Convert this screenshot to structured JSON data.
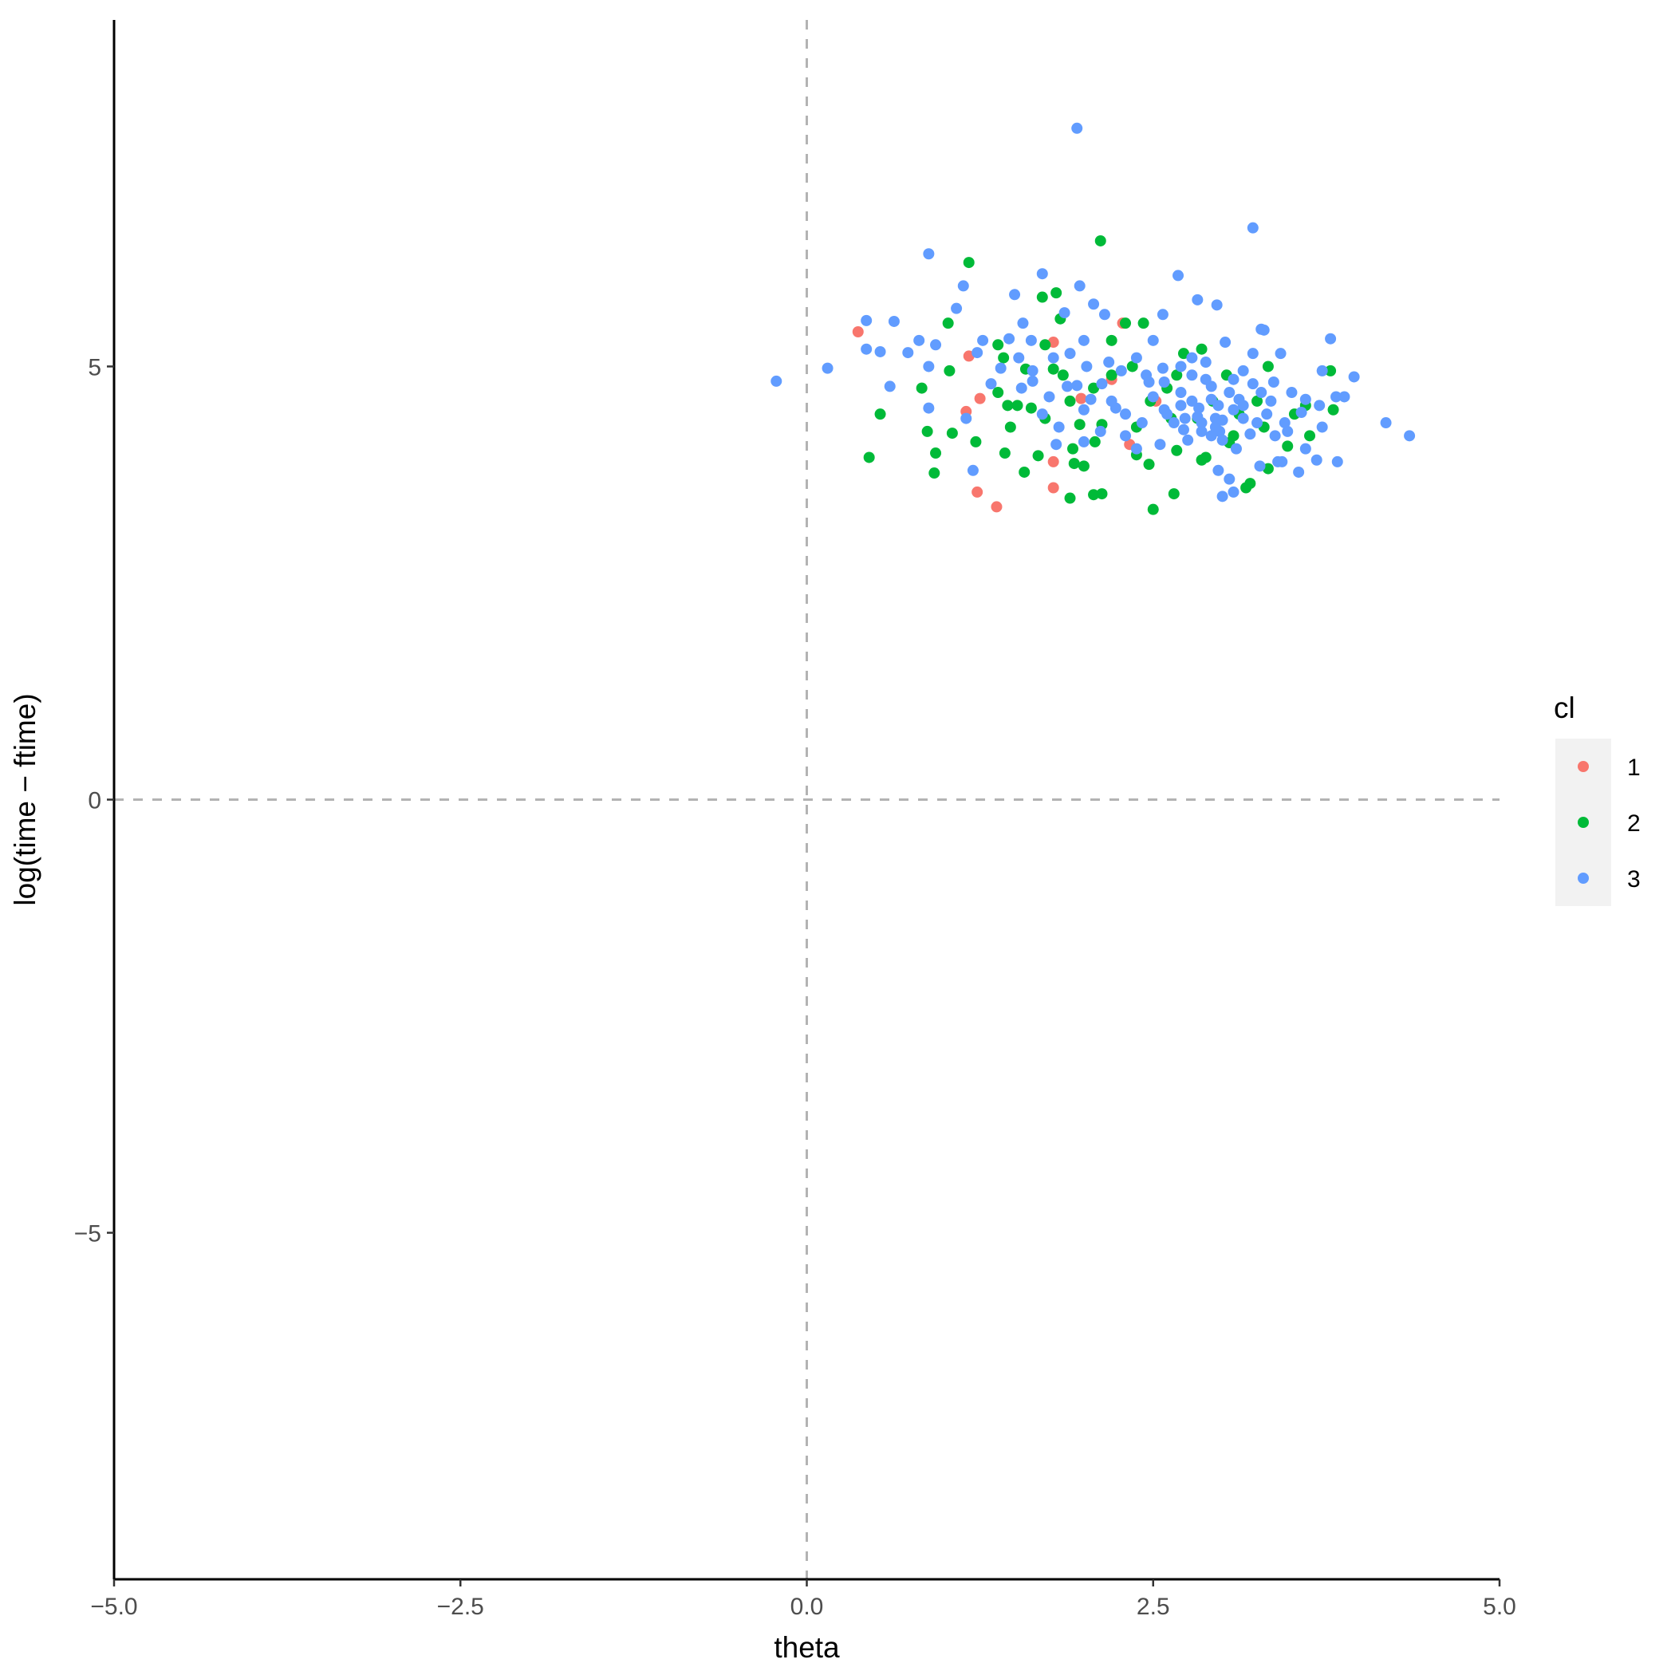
{
  "chart_data": {
    "type": "scatter",
    "title": "",
    "xlabel": "theta",
    "ylabel": "log(time − ftime)",
    "xlim": [
      -5.0,
      5.0
    ],
    "ylim": [
      -9,
      9
    ],
    "x_ticks": [
      -5.0,
      -2.5,
      0.0,
      2.5,
      5.0
    ],
    "x_tick_labels": [
      "−5.0",
      "−2.5",
      "0.0",
      "2.5",
      "5.0"
    ],
    "y_ticks": [
      -5,
      0,
      5
    ],
    "y_tick_labels": [
      "−5",
      "0",
      "5"
    ],
    "reference_lines": {
      "vertical_x": 0,
      "horizontal_y": 0,
      "style": "dashed",
      "color": "#b3b3b3"
    },
    "grid": false,
    "legend": {
      "title": "cl",
      "placement": "right",
      "entries": [
        {
          "label": "1",
          "color": "#F8766D"
        },
        {
          "label": "2",
          "color": "#00BA38"
        },
        {
          "label": "3",
          "color": "#619CFF"
        }
      ]
    },
    "series": [
      {
        "name": "1",
        "color": "#F8766D",
        "points": [
          [
            0.37,
            5.4
          ],
          [
            1.17,
            5.12
          ],
          [
            1.23,
            3.55
          ],
          [
            1.37,
            3.38
          ],
          [
            1.25,
            4.63
          ],
          [
            1.15,
            4.48
          ],
          [
            1.78,
            5.28
          ],
          [
            1.78,
            3.9
          ],
          [
            1.78,
            3.6
          ],
          [
            1.98,
            4.63
          ],
          [
            2.2,
            4.85
          ],
          [
            2.33,
            4.1
          ],
          [
            2.52,
            4.6
          ],
          [
            2.28,
            5.5
          ]
        ]
      },
      {
        "name": "2",
        "color": "#00BA38",
        "points": [
          [
            2.12,
            6.45
          ],
          [
            1.17,
            6.2
          ],
          [
            1.8,
            5.85
          ],
          [
            1.7,
            5.8
          ],
          [
            1.02,
            5.5
          ],
          [
            2.3,
            5.5
          ],
          [
            2.43,
            5.5
          ],
          [
            1.83,
            5.55
          ],
          [
            1.38,
            5.25
          ],
          [
            1.42,
            5.1
          ],
          [
            1.72,
            5.25
          ],
          [
            2.2,
            5.3
          ],
          [
            2.72,
            5.15
          ],
          [
            2.85,
            5.2
          ],
          [
            1.78,
            4.97
          ],
          [
            1.58,
            4.97
          ],
          [
            1.85,
            4.9
          ],
          [
            2.2,
            4.9
          ],
          [
            2.67,
            4.9
          ],
          [
            3.03,
            4.9
          ],
          [
            3.33,
            5.0
          ],
          [
            3.78,
            4.95
          ],
          [
            1.03,
            4.95
          ],
          [
            0.83,
            4.75
          ],
          [
            1.45,
            4.55
          ],
          [
            1.52,
            4.55
          ],
          [
            1.38,
            4.7
          ],
          [
            1.9,
            4.6
          ],
          [
            2.07,
            4.75
          ],
          [
            2.48,
            4.6
          ],
          [
            2.93,
            4.6
          ],
          [
            3.25,
            4.6
          ],
          [
            3.6,
            4.55
          ],
          [
            3.8,
            4.5
          ],
          [
            0.53,
            4.45
          ],
          [
            0.87,
            4.25
          ],
          [
            1.05,
            4.23
          ],
          [
            1.22,
            4.13
          ],
          [
            1.47,
            4.3
          ],
          [
            1.72,
            4.4
          ],
          [
            1.97,
            4.33
          ],
          [
            2.13,
            4.33
          ],
          [
            2.38,
            4.3
          ],
          [
            2.63,
            4.4
          ],
          [
            2.82,
            4.4
          ],
          [
            3.08,
            4.2
          ],
          [
            3.3,
            4.3
          ],
          [
            3.52,
            4.45
          ],
          [
            3.63,
            4.2
          ],
          [
            3.47,
            4.08
          ],
          [
            0.45,
            3.95
          ],
          [
            0.93,
            4.0
          ],
          [
            1.43,
            4.0
          ],
          [
            1.67,
            3.97
          ],
          [
            1.92,
            4.05
          ],
          [
            2.08,
            4.13
          ],
          [
            2.38,
            3.98
          ],
          [
            2.67,
            4.03
          ],
          [
            2.88,
            3.95
          ],
          [
            3.05,
            4.12
          ],
          [
            0.92,
            3.77
          ],
          [
            1.57,
            3.78
          ],
          [
            1.93,
            3.88
          ],
          [
            2.0,
            3.85
          ],
          [
            2.47,
            3.87
          ],
          [
            2.85,
            3.92
          ],
          [
            3.33,
            3.82
          ],
          [
            1.9,
            3.48
          ],
          [
            2.07,
            3.52
          ],
          [
            2.13,
            3.53
          ],
          [
            2.65,
            3.53
          ],
          [
            3.17,
            3.6
          ],
          [
            3.2,
            3.65
          ],
          [
            2.5,
            3.35
          ],
          [
            2.35,
            5.0
          ],
          [
            2.6,
            4.75
          ],
          [
            1.62,
            4.52
          ],
          [
            3.12,
            4.45
          ]
        ]
      },
      {
        "name": "3",
        "color": "#619CFF",
        "points": [
          [
            1.95,
            7.75
          ],
          [
            3.22,
            6.6
          ],
          [
            0.88,
            6.3
          ],
          [
            1.7,
            6.07
          ],
          [
            2.68,
            6.05
          ],
          [
            1.13,
            5.93
          ],
          [
            1.97,
            5.93
          ],
          [
            1.5,
            5.83
          ],
          [
            1.08,
            5.67
          ],
          [
            2.07,
            5.72
          ],
          [
            2.82,
            5.77
          ],
          [
            2.96,
            5.71
          ],
          [
            0.43,
            5.53
          ],
          [
            0.63,
            5.52
          ],
          [
            1.56,
            5.5
          ],
          [
            2.57,
            5.6
          ],
          [
            3.28,
            5.43
          ],
          [
            3.3,
            5.42
          ],
          [
            1.86,
            5.62
          ],
          [
            2.15,
            5.6
          ],
          [
            0.81,
            5.3
          ],
          [
            0.93,
            5.25
          ],
          [
            1.27,
            5.3
          ],
          [
            1.46,
            5.32
          ],
          [
            1.62,
            5.3
          ],
          [
            2.0,
            5.3
          ],
          [
            2.5,
            5.3
          ],
          [
            3.02,
            5.28
          ],
          [
            3.78,
            5.32
          ],
          [
            0.43,
            5.2
          ],
          [
            0.53,
            5.17
          ],
          [
            0.73,
            5.16
          ],
          [
            1.23,
            5.16
          ],
          [
            1.53,
            5.1
          ],
          [
            1.78,
            5.1
          ],
          [
            2.38,
            5.1
          ],
          [
            2.78,
            5.1
          ],
          [
            3.22,
            5.15
          ],
          [
            3.42,
            5.15
          ],
          [
            0.88,
            5.0
          ],
          [
            0.15,
            4.98
          ],
          [
            1.4,
            4.98
          ],
          [
            1.63,
            4.95
          ],
          [
            2.27,
            4.95
          ],
          [
            2.57,
            4.98
          ],
          [
            3.15,
            4.95
          ],
          [
            3.72,
            4.95
          ],
          [
            3.95,
            4.88
          ],
          [
            -0.22,
            4.83
          ],
          [
            0.6,
            4.77
          ],
          [
            1.33,
            4.8
          ],
          [
            1.63,
            4.83
          ],
          [
            1.88,
            4.77
          ],
          [
            2.13,
            4.8
          ],
          [
            2.47,
            4.82
          ],
          [
            2.92,
            4.77
          ],
          [
            3.37,
            4.82
          ],
          [
            3.82,
            4.65
          ],
          [
            3.88,
            4.65
          ],
          [
            0.88,
            4.52
          ],
          [
            1.15,
            4.4
          ],
          [
            1.7,
            4.45
          ],
          [
            2.0,
            4.5
          ],
          [
            2.23,
            4.52
          ],
          [
            2.58,
            4.5
          ],
          [
            2.83,
            4.52
          ],
          [
            3.08,
            4.5
          ],
          [
            3.32,
            4.45
          ],
          [
            3.57,
            4.47
          ],
          [
            3.7,
            4.55
          ],
          [
            4.18,
            4.35
          ],
          [
            4.35,
            4.2
          ],
          [
            1.8,
            4.1
          ],
          [
            2.0,
            4.13
          ],
          [
            2.3,
            4.2
          ],
          [
            2.72,
            4.27
          ],
          [
            2.98,
            4.25
          ],
          [
            3.2,
            4.22
          ],
          [
            3.47,
            4.25
          ],
          [
            3.6,
            4.05
          ],
          [
            3.83,
            3.9
          ],
          [
            3.68,
            3.92
          ],
          [
            3.4,
            3.9
          ],
          [
            1.2,
            3.8
          ],
          [
            2.97,
            3.8
          ],
          [
            3.55,
            3.78
          ],
          [
            3.05,
            3.7
          ],
          [
            3.08,
            3.55
          ],
          [
            3.0,
            3.5
          ],
          [
            3.27,
            3.85
          ],
          [
            3.43,
            3.9
          ],
          [
            2.92,
            4.2
          ],
          [
            2.78,
            4.6
          ],
          [
            2.95,
            4.4
          ],
          [
            3.1,
            4.05
          ],
          [
            3.25,
            4.35
          ],
          [
            2.65,
            4.35
          ],
          [
            2.75,
            4.15
          ],
          [
            2.85,
            4.35
          ],
          [
            2.97,
            4.55
          ],
          [
            3.05,
            4.7
          ],
          [
            3.15,
            4.4
          ],
          [
            2.7,
            4.7
          ],
          [
            2.88,
            4.85
          ],
          [
            2.5,
            4.65
          ],
          [
            2.6,
            4.45
          ],
          [
            3.35,
            4.6
          ],
          [
            3.5,
            4.7
          ],
          [
            3.12,
            4.62
          ],
          [
            2.82,
            4.42
          ],
          [
            2.95,
            4.3
          ],
          [
            3.0,
            4.15
          ],
          [
            2.73,
            4.4
          ],
          [
            2.42,
            4.35
          ],
          [
            2.3,
            4.45
          ],
          [
            2.2,
            4.6
          ],
          [
            2.05,
            4.62
          ],
          [
            1.95,
            4.78
          ],
          [
            1.75,
            4.65
          ],
          [
            1.55,
            4.75
          ],
          [
            1.82,
            4.3
          ],
          [
            2.12,
            4.25
          ],
          [
            2.38,
            4.05
          ],
          [
            2.55,
            4.1
          ],
          [
            3.38,
            4.2
          ],
          [
            3.72,
            4.3
          ],
          [
            3.6,
            4.62
          ],
          [
            2.45,
            4.9
          ],
          [
            2.18,
            5.05
          ],
          [
            2.02,
            5.0
          ],
          [
            1.9,
            5.15
          ],
          [
            2.7,
            5.0
          ],
          [
            2.88,
            5.05
          ],
          [
            3.08,
            4.85
          ],
          [
            3.22,
            4.8
          ],
          [
            2.78,
            4.9
          ],
          [
            2.92,
            4.62
          ],
          [
            3.0,
            4.38
          ],
          [
            2.85,
            4.25
          ],
          [
            2.7,
            4.55
          ],
          [
            2.58,
            4.82
          ],
          [
            3.28,
            4.7
          ],
          [
            3.15,
            4.55
          ],
          [
            3.45,
            4.35
          ]
        ]
      }
    ]
  }
}
